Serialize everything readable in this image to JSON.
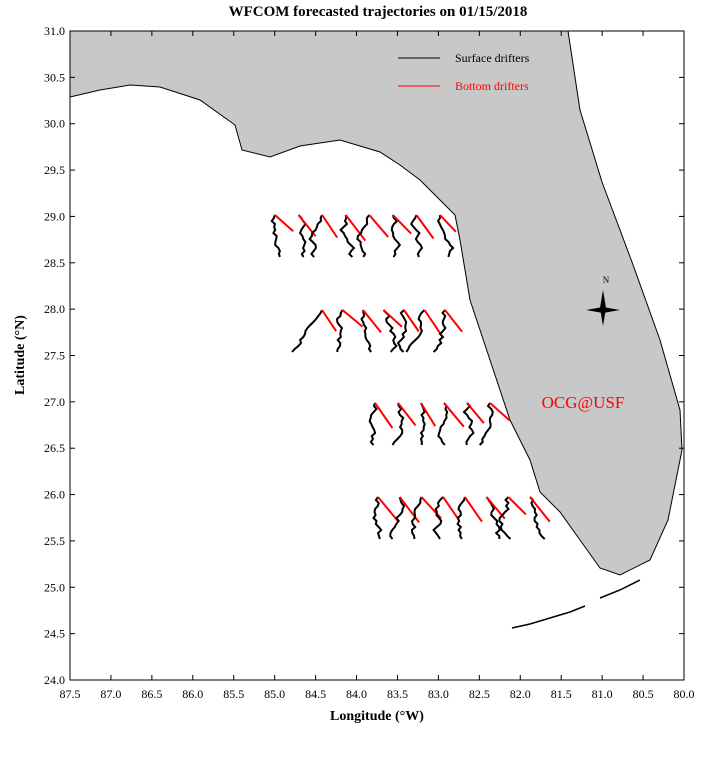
{
  "chart_data": {
    "type": "map",
    "title": "WFCOM forecasted trajectories on 01/15/2018",
    "x_label": "Longitude (°W)",
    "y_label": "Latitude (°N)",
    "xlim": [
      87.5,
      80.0
    ],
    "ylim": [
      24.0,
      31.0
    ],
    "xticks": [
      87.5,
      {
        "value": 87,
        "label": "87.0"
      },
      86.5,
      {
        "value": 86,
        "label": "86.0"
      },
      85.5,
      {
        "value": 85,
        "label": "85.0"
      },
      84.5,
      {
        "value": 84,
        "label": "84.0"
      },
      83.5,
      {
        "value": 83,
        "label": "83.0"
      },
      82.5,
      {
        "value": 82,
        "label": "82.0"
      },
      81.5,
      {
        "value": 81,
        "label": "81.0"
      },
      80.5,
      {
        "value": 80,
        "label": "80.0"
      }
    ],
    "yticks": [
      {
        "value": 24,
        "label": "24.0"
      },
      24.5,
      {
        "value": 25,
        "label": "25.0"
      },
      25.5,
      {
        "value": 26,
        "label": "26.0"
      },
      26.5,
      {
        "value": 27,
        "label": "27.0"
      },
      27.5,
      {
        "value": 28,
        "label": "28.0"
      },
      28.5,
      {
        "value": 29,
        "label": "29.0"
      },
      29.5,
      {
        "value": 30,
        "label": "30.0"
      },
      30.5,
      {
        "value": 31,
        "label": "31.0"
      }
    ],
    "legend": [
      {
        "name": "Surface drifters",
        "color": "#000000"
      },
      {
        "name": "Bottom drifters",
        "color": "#ff0000"
      }
    ],
    "annotation": "OCG@USF",
    "compass_label": "N"
  }
}
